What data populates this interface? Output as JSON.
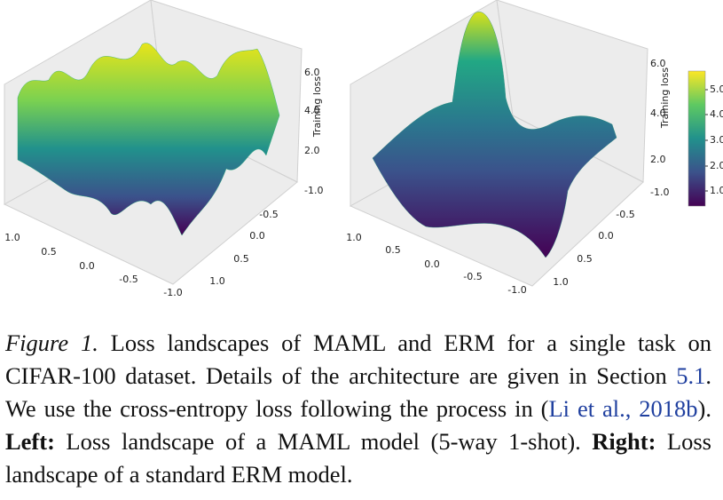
{
  "figure": {
    "left": {
      "zlabel": "Training loss",
      "zticks": [
        "6.0",
        "4.0",
        "2.0",
        "-1.0"
      ],
      "xticks": [
        "1.0",
        "0.5",
        "0.0",
        "-0.5",
        "-1.0"
      ],
      "yticks": [
        "-0.5",
        "0.0",
        "0.5",
        "1.0"
      ]
    },
    "right": {
      "zlabel": "Training loss",
      "zticks": [
        "6.0",
        "4.0",
        "2.0",
        "-1.0"
      ],
      "xticks": [
        "1.0",
        "0.5",
        "0.0",
        "-0.5",
        "-1.0"
      ],
      "yticks": [
        "-0.5",
        "0.0",
        "0.5",
        "1.0"
      ]
    },
    "colorbar": {
      "ticks": [
        "5.0",
        "4.0",
        "3.0",
        "2.0",
        "1.0"
      ]
    }
  },
  "caption": {
    "label": "Figure 1.",
    "text_1": " Loss landscapes of MAML and ERM for a single task on CIFAR-100 dataset.  Details of the architecture are given in Section ",
    "section_ref": "5.1",
    "text_2": ". We use the cross-entropy loss following the process in (",
    "citation": "Li et al., 2018b",
    "text_3": "). ",
    "left_label": "Left:",
    "left_text": " Loss landscape of a MAML model (5-way 1-shot). ",
    "right_label": "Right:",
    "right_text": " Loss landscape of a standard ERM model."
  }
}
